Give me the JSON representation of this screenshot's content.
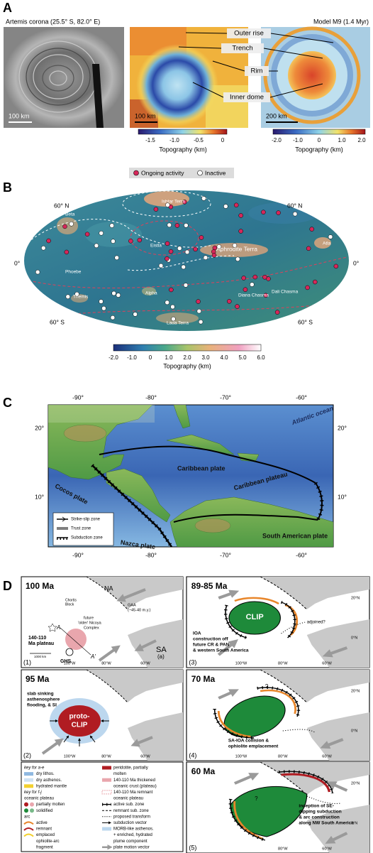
{
  "panel_a": {
    "label": "A",
    "left_title": "Artemis corona (25.5° S, 82.0° E)",
    "right_title": "Model M9 (1.4 Myr)",
    "scale_bars": [
      "100 km",
      "100 km",
      "200 km"
    ],
    "annotations": [
      "Outer rise",
      "Trench",
      "Rim",
      "Inner dome"
    ],
    "colorbar_middle": {
      "ticks": [
        "-1.5",
        "-1.0",
        "-0.5",
        "0"
      ],
      "label": "Topography (km)"
    },
    "colorbar_right": {
      "ticks": [
        "-2.0",
        "-1.0",
        "0",
        "1.0",
        "2.0"
      ],
      "label": "Topography (km)"
    }
  },
  "panel_b": {
    "label": "B",
    "legend": [
      "Ongoing activity",
      "Inactive"
    ],
    "latitude_labels_left": [
      "60° N",
      "0°",
      "60° S"
    ],
    "latitude_labels_right": [
      "60° N",
      "0°",
      "60° S"
    ],
    "features": [
      "Ishtar Terra",
      "Beta",
      "Eistla",
      "Aphrodite Terra",
      "Phoebe",
      "Themis",
      "Alpha",
      "Lada Terra",
      "Diana Chasma",
      "Dali Chasma",
      "Atla"
    ],
    "colorbar": {
      "ticks": [
        "-2.0",
        "-1.0",
        "0",
        "1.0",
        "2.0",
        "3.0",
        "4.0",
        "5.0",
        "6.0"
      ],
      "label": "Topography (km)"
    }
  },
  "panel_c": {
    "label": "C",
    "longitudes_top": [
      "-90°",
      "-80°",
      "-70°",
      "-60°"
    ],
    "longitudes_bottom": [
      "-90°",
      "-80°",
      "-70°",
      "-60°"
    ],
    "latitudes_left": [
      "20°",
      "10°"
    ],
    "latitudes_right": [
      "20°",
      "10°"
    ],
    "labels": [
      "Atlantic ocean",
      "Caribbean plate",
      "Caribbean plateau",
      "Cocos plate",
      "Nazca plate",
      "South American plate"
    ],
    "legend": [
      "Strike-slip zone",
      "Trust zone",
      "Subduction zone"
    ]
  },
  "panel_d": {
    "label": "D",
    "panels": [
      {
        "age": "100 Ma",
        "number": "(1)",
        "texts": [
          "NA",
          "Chortis",
          "Block",
          "GAA",
          "(~45-40 m.y.)",
          "future",
          "'older' Nicoya",
          "Complex",
          "A",
          "A'",
          "140-110",
          "Ma plateau",
          "GHS",
          "SA",
          "(a)",
          "1000 km"
        ],
        "longitudes": [
          "100°W",
          "80°W",
          "60°W"
        ]
      },
      {
        "age": "95 Ma",
        "number": "(2)",
        "texts": [
          "slab sinking",
          "asthenosphere",
          "flooding, & SI",
          "proto-",
          "CLIP"
        ],
        "longitudes": [
          "100°W",
          "80°W",
          "60°W"
        ]
      },
      {
        "age": "89-85 Ma",
        "number": "(3)",
        "texts": [
          "CLIP",
          "adjoined?",
          "IOA",
          "construction off",
          "future CR & PAN",
          "& western South America"
        ],
        "longitudes": [
          "100°W",
          "80°W",
          "60°W"
        ],
        "latitudes": [
          "20°N",
          "0°N"
        ]
      },
      {
        "age": "70 Ma",
        "number": "(4)",
        "texts": [
          "?",
          "SA-IOA collision &",
          "ophiolite emplacement"
        ],
        "longitudes": [
          "100°W",
          "80°W",
          "60°W"
        ],
        "latitudes": [
          "20°N",
          "0°N"
        ]
      },
      {
        "age": "60 Ma",
        "number": "(5)",
        "texts": [
          "?",
          "inception of SE-",
          "dipping subduction",
          "& arc construction",
          "along NW South America"
        ],
        "longitudes": [
          "80°W",
          "60°W"
        ],
        "latitudes": [
          "20°N",
          "0°N"
        ]
      }
    ],
    "key": {
      "left": [
        "key for a-e",
        "dry lithos.",
        "dry asthenos.",
        "hydrated mantle",
        "key for f-j",
        "oceanic plateau",
        "partially molten",
        "solidified",
        "arc",
        "active",
        "remnant",
        "emplaced",
        "ophiolite-arc",
        "fragment"
      ],
      "right": [
        "peridotite, partially",
        "molten",
        "140-110 Ma thickened",
        "oceanic crust (plateau)",
        "140-110 Ma remnant",
        "oceanic plateau",
        "active sub. zone",
        "remnant sub. zone",
        "proposed transform",
        "subduction vector",
        "MORB-like asthenos.",
        "+ enriched, hydrated",
        "plume component",
        "plate motion vector"
      ]
    }
  }
}
